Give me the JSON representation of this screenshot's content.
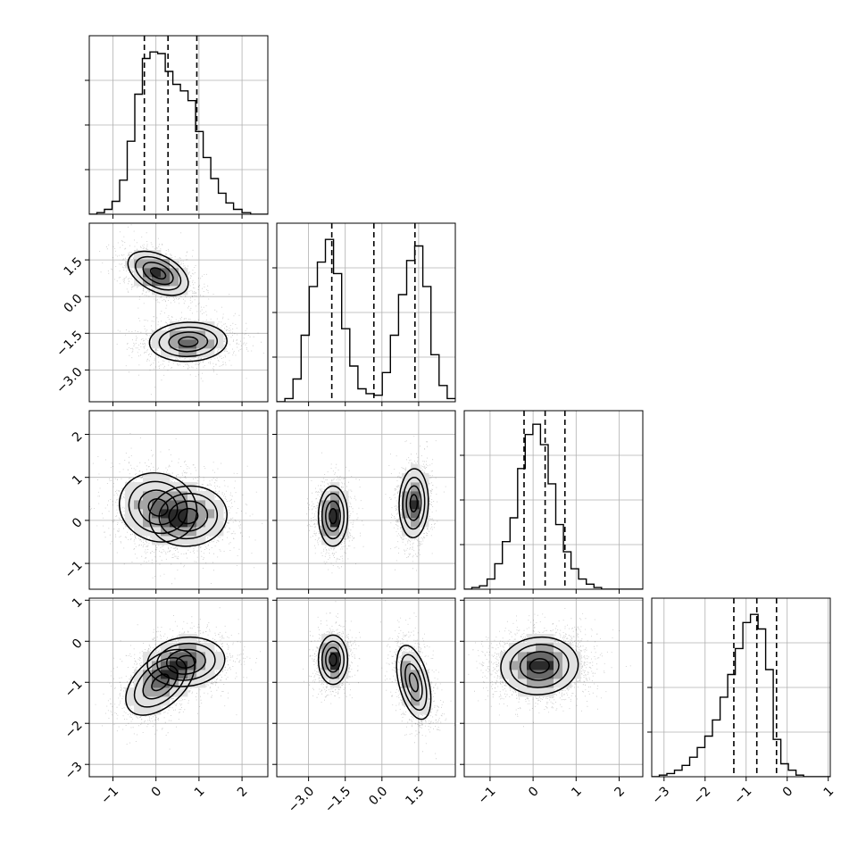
{
  "chart_data": {
    "type": "corner",
    "description": "Corner plot of a 4-parameter sample: 1D histograms on the diagonal with dashed quantile lines, 2D scatter+density contours below the diagonal. No parameter labels printed.",
    "grid": true,
    "histogram_style": "step",
    "quantile_line_style": "dashed",
    "parameters": [
      {
        "index": 0,
        "range": [
          -1.55,
          2.6
        ],
        "ticks": [
          -1,
          0,
          1,
          2
        ],
        "tick_labels": [
          "−1",
          "0",
          "1",
          "2"
        ],
        "quantiles": [
          -0.27,
          0.28,
          0.95
        ],
        "hist_edges": [
          -1.55,
          -1.3735,
          -1.197,
          -1.0205,
          -0.844,
          -0.6675,
          -0.491,
          -0.3145,
          -0.138,
          0.0385,
          0.215,
          0.3915,
          0.568,
          0.7445,
          0.921,
          1.0975,
          1.274,
          1.4505,
          1.627,
          1.8035,
          2.0,
          2.2,
          2.4,
          2.6
        ],
        "hist_counts": [
          0,
          0.01,
          0.03,
          0.08,
          0.21,
          0.45,
          0.74,
          0.96,
          1.0,
          0.99,
          0.88,
          0.8,
          0.76,
          0.7,
          0.51,
          0.35,
          0.22,
          0.13,
          0.07,
          0.03,
          0.01,
          0,
          0
        ],
        "hist_ymax": 1.1
      },
      {
        "index": 1,
        "range": [
          -4.3,
          3.0
        ],
        "ticks": [
          -3.0,
          -1.5,
          0.0,
          1.5
        ],
        "tick_labels": [
          "−3.0",
          "−1.5",
          "0.0",
          "1.5"
        ],
        "quantiles": [
          -2.05,
          -0.33,
          1.35
        ],
        "hist_edges": [
          -4.3,
          -3.968,
          -3.636,
          -3.305,
          -2.973,
          -2.641,
          -2.309,
          -1.977,
          -1.645,
          -1.314,
          -0.982,
          -0.65,
          -0.318,
          0.014,
          0.345,
          0.677,
          1.009,
          1.341,
          1.673,
          2.005,
          2.336,
          2.668,
          3.0
        ],
        "hist_counts": [
          0.0,
          0.02,
          0.14,
          0.41,
          0.71,
          0.86,
          1.0,
          0.79,
          0.45,
          0.22,
          0.08,
          0.05,
          0.04,
          0.18,
          0.41,
          0.66,
          0.87,
          0.96,
          0.71,
          0.29,
          0.1,
          0.02
        ],
        "hist_ymax": 1.1
      },
      {
        "index": 2,
        "range": [
          -1.6,
          2.55
        ],
        "ticks": [
          -1,
          0,
          1,
          2
        ],
        "tick_labels": [
          "−1",
          "0",
          "1",
          "2"
        ],
        "quantiles": [
          -0.21,
          0.28,
          0.74
        ],
        "hist_edges": [
          -1.6,
          -1.423,
          -1.245,
          -1.068,
          -0.891,
          -0.714,
          -0.536,
          -0.359,
          -0.182,
          -0.005,
          0.173,
          0.35,
          0.527,
          0.705,
          0.882,
          1.059,
          1.236,
          1.414,
          1.591,
          1.768,
          1.945,
          2.123,
          2.3,
          2.55
        ],
        "hist_counts": [
          0.0,
          0.01,
          0.02,
          0.06,
          0.15,
          0.28,
          0.42,
          0.71,
          0.91,
          0.97,
          0.85,
          0.62,
          0.38,
          0.22,
          0.12,
          0.06,
          0.03,
          0.01,
          0,
          0,
          0,
          0,
          0
        ],
        "hist_ymax": 1.05
      },
      {
        "index": 3,
        "range": [
          -3.3,
          1.05
        ],
        "ticks": [
          -3,
          -2,
          -1,
          0,
          1
        ],
        "tick_labels": [
          "−3",
          "−2",
          "−1",
          "0",
          "1"
        ],
        "quantiles": [
          -1.3,
          -0.74,
          -0.26
        ],
        "hist_edges": [
          -3.3,
          -3.115,
          -2.93,
          -2.745,
          -2.56,
          -2.375,
          -2.19,
          -2.005,
          -1.82,
          -1.635,
          -1.45,
          -1.265,
          -1.08,
          -0.895,
          -0.71,
          -0.525,
          -0.34,
          -0.155,
          0.03,
          0.215,
          0.4,
          0.585,
          0.77,
          1.05
        ],
        "hist_counts": [
          0.0,
          0.01,
          0.02,
          0.04,
          0.07,
          0.12,
          0.18,
          0.25,
          0.35,
          0.49,
          0.63,
          0.79,
          0.95,
          1.0,
          0.91,
          0.66,
          0.23,
          0.08,
          0.04,
          0.01,
          0,
          0,
          0
        ],
        "hist_ymax": 1.1
      }
    ],
    "pairs": [
      {
        "x": 0,
        "y": 1,
        "modes": [
          {
            "mean": [
              0.05,
              0.95
            ],
            "sd": [
              0.35,
              0.45
            ],
            "rho": -0.45
          },
          {
            "mean": [
              0.75,
              -1.85
            ],
            "sd": [
              0.45,
              0.4
            ],
            "rho": 0.05
          }
        ]
      },
      {
        "x": 0,
        "y": 2,
        "modes": [
          {
            "mean": [
              0.05,
              0.3
            ],
            "sd": [
              0.45,
              0.4
            ],
            "rho": -0.1
          },
          {
            "mean": [
              0.75,
              0.1
            ],
            "sd": [
              0.45,
              0.35
            ],
            "rho": 0.05
          }
        ]
      },
      {
        "x": 1,
        "y": 2,
        "modes": [
          {
            "mean": [
              -2.0,
              0.1
            ],
            "sd": [
              0.3,
              0.35
            ],
            "rho": 0.0
          },
          {
            "mean": [
              1.3,
              0.4
            ],
            "sd": [
              0.3,
              0.4
            ],
            "rho": 0.05
          }
        ]
      },
      {
        "x": 0,
        "y": 3,
        "modes": [
          {
            "mean": [
              0.1,
              -1.0
            ],
            "sd": [
              0.4,
              0.4
            ],
            "rho": 0.5
          },
          {
            "mean": [
              0.7,
              -0.5
            ],
            "sd": [
              0.45,
              0.3
            ],
            "rho": 0.1
          }
        ]
      },
      {
        "x": 1,
        "y": 3,
        "modes": [
          {
            "mean": [
              -2.0,
              -0.45
            ],
            "sd": [
              0.3,
              0.3
            ],
            "rho": 0.0
          },
          {
            "mean": [
              1.3,
              -1.0
            ],
            "sd": [
              0.35,
              0.45
            ],
            "rho": -0.45
          }
        ]
      },
      {
        "x": 2,
        "y": 3,
        "modes": [
          {
            "mean": [
              0.15,
              -0.6
            ],
            "sd": [
              0.45,
              0.35
            ],
            "rho": 0.05
          }
        ]
      }
    ],
    "contour_levels": [
      0.12,
      0.39,
      0.68,
      0.86
    ]
  }
}
